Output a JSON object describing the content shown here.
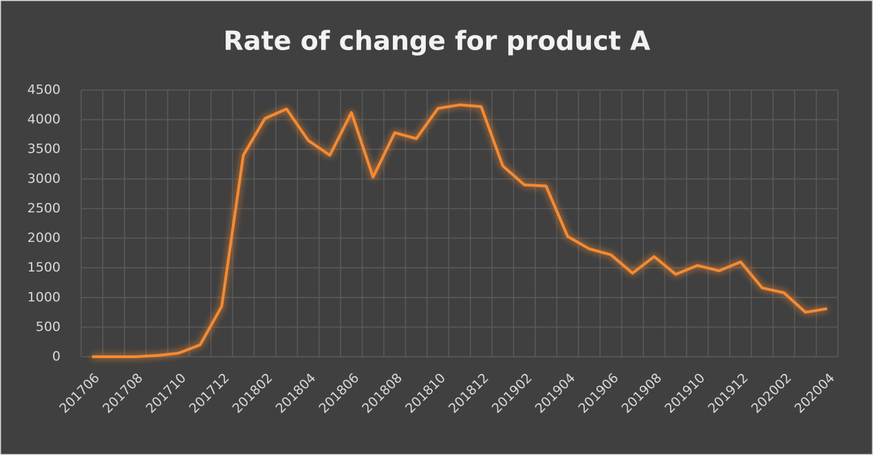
{
  "chart_data": {
    "type": "line",
    "title": "Rate of change for product A",
    "categories": [
      "201706",
      null,
      "201708",
      null,
      "201710",
      null,
      "201712",
      null,
      "201802",
      null,
      "201804",
      null,
      "201806",
      null,
      "201808",
      null,
      "201810",
      null,
      "201812",
      null,
      "201902",
      null,
      "201904",
      null,
      "201906",
      null,
      "201908",
      null,
      "201910",
      null,
      "201912",
      null,
      "202002",
      null,
      "202004"
    ],
    "series": [
      {
        "color": "#f58a32",
        "values": [
          0,
          0,
          0,
          20,
          60,
          200,
          850,
          3400,
          4020,
          4180,
          3650,
          3400,
          4120,
          3030,
          3780,
          3680,
          4190,
          4250,
          4220,
          3220,
          2900,
          2880,
          2030,
          1820,
          1720,
          1410,
          1690,
          1390,
          1540,
          1450,
          1600,
          1160,
          1080,
          750,
          810
        ]
      }
    ],
    "ylim": [
      0,
      4500
    ],
    "yticks": [
      0,
      500,
      1000,
      1500,
      2000,
      2500,
      3000,
      3500,
      4000,
      4500
    ],
    "grid": true
  }
}
